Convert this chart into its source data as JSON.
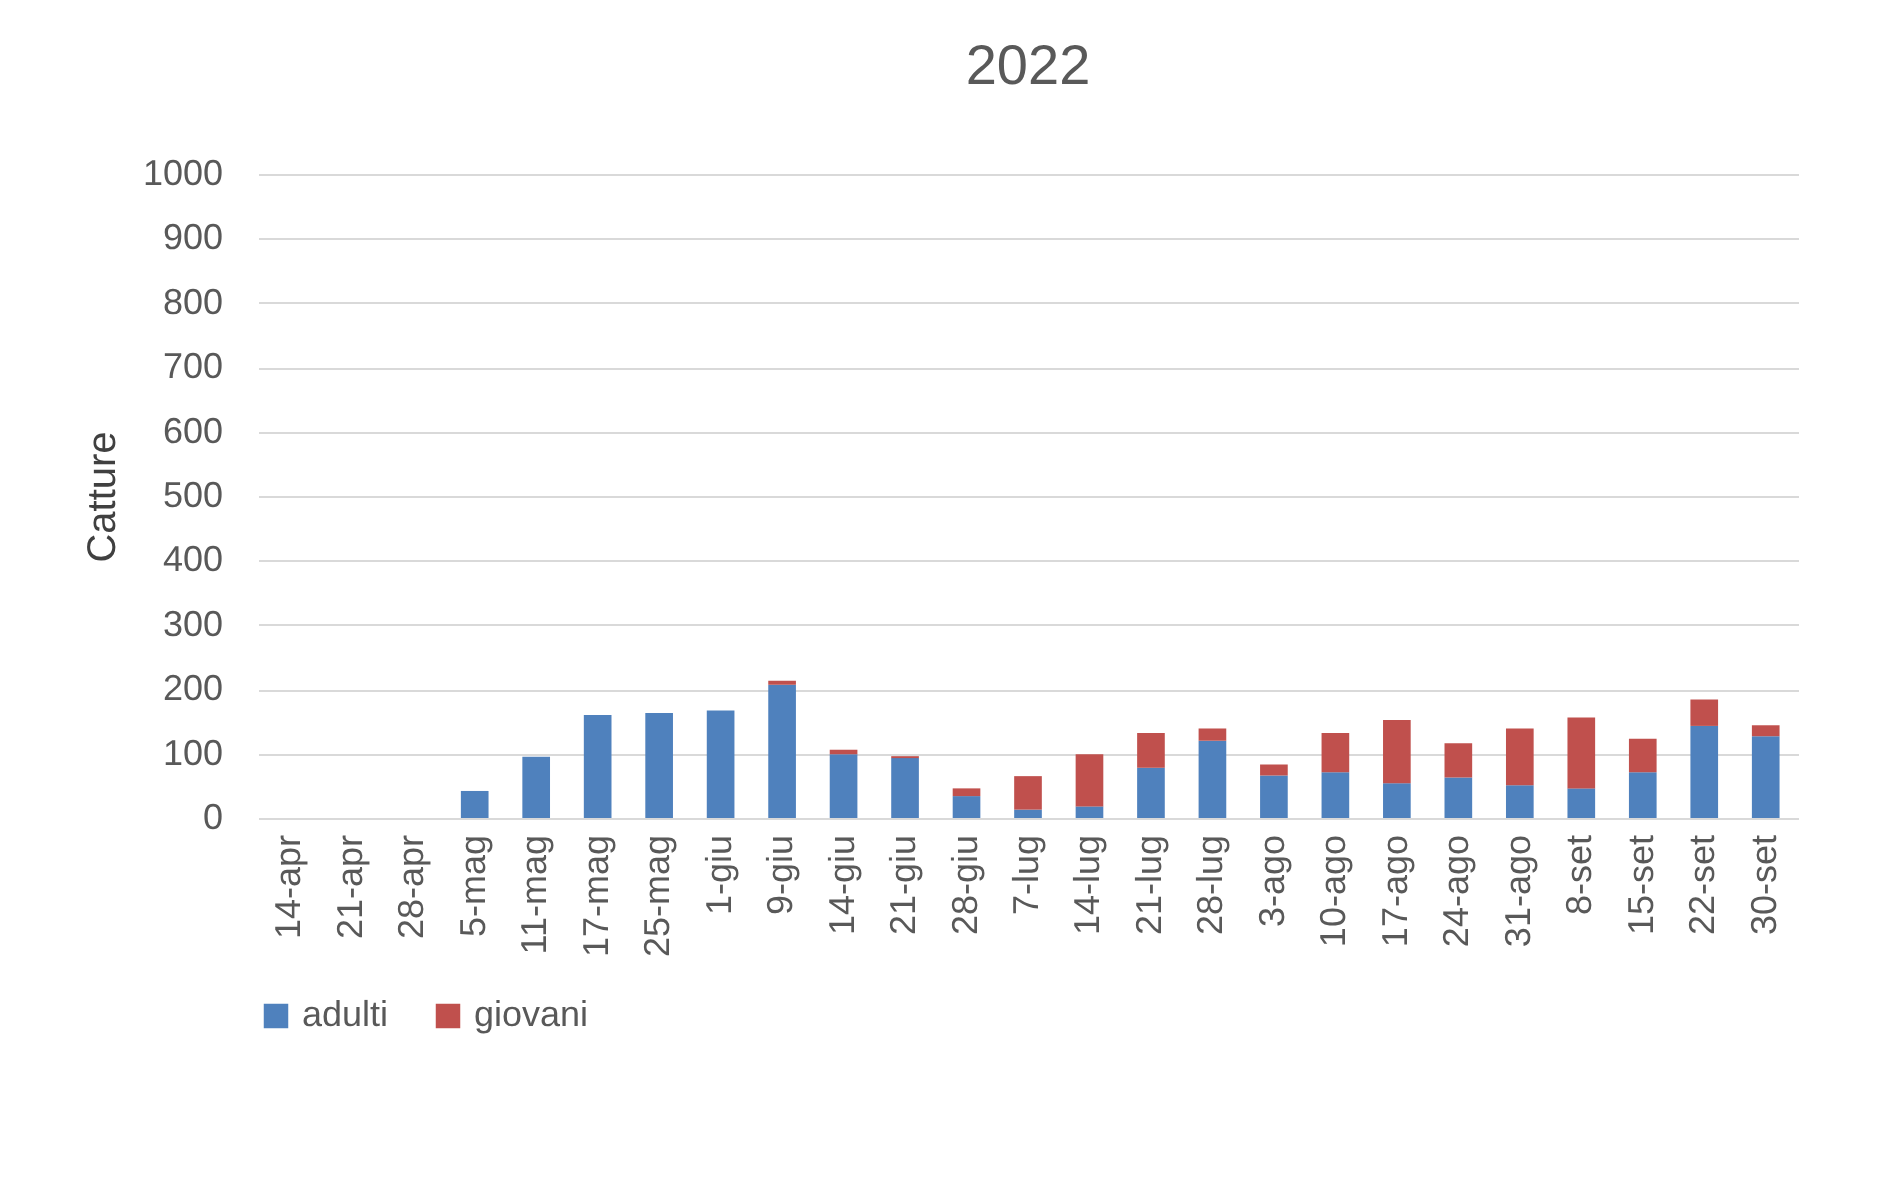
{
  "chart_data": {
    "type": "bar",
    "title": "2022",
    "ylabel": "Catture",
    "stacked": true,
    "grid": "y",
    "legend": "bottom",
    "categories": [
      "14-apr",
      "21-apr",
      "28-apr",
      "5-mag",
      "11-mag",
      "17-mag",
      "25-mag",
      "1-giu",
      "9-giu",
      "14-giu",
      "21-giu",
      "28-giu",
      "7-lug",
      "14-lug",
      "21-lug",
      "28-lug",
      "3-ago",
      "10-ago",
      "17-ago",
      "24-ago",
      "31-ago",
      "8-set",
      "15-set",
      "22-set",
      "30-set"
    ],
    "ylim": [
      0,
      1000
    ],
    "yticks": [
      0,
      100,
      200,
      300,
      400,
      500,
      600,
      700,
      800,
      900,
      1000
    ],
    "series": [
      {
        "name": "adulti",
        "color": "#4f81bd",
        "values": [
          0,
          0,
          0,
          42,
          95,
          160,
          163,
          167,
          207,
          99,
          93,
          34,
          13,
          18,
          78,
          120,
          66,
          71,
          54,
          63,
          51,
          46,
          71,
          143,
          127
        ]
      },
      {
        "name": "giovani",
        "color": "#c0504d",
        "values": [
          0,
          0,
          0,
          0,
          0,
          0,
          0,
          0,
          6,
          7,
          3,
          12,
          52,
          81,
          54,
          19,
          17,
          61,
          98,
          53,
          88,
          110,
          52,
          41,
          17
        ]
      }
    ]
  }
}
